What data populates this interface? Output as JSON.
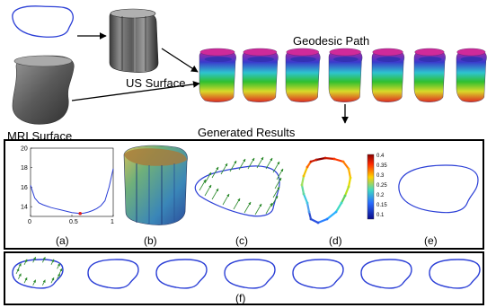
{
  "labels": {
    "us_surface": "US Surface",
    "mri_surface": "MRI Surface",
    "geodesic_path": "Geodesic Path",
    "generated_results": "Generated Results"
  },
  "panels": [
    "(a)",
    "(b)",
    "(c)",
    "(d)",
    "(e)",
    "(f)"
  ],
  "chart_data": {
    "type": "line",
    "x": [
      0,
      0.05,
      0.1,
      0.15,
      0.2,
      0.25,
      0.3,
      0.35,
      0.4,
      0.45,
      0.5,
      0.55,
      0.6,
      0.65,
      0.7,
      0.75,
      0.8,
      0.85,
      0.9,
      0.95,
      1.0
    ],
    "y": [
      16.2,
      14.9,
      14.4,
      14.2,
      14.05,
      13.9,
      13.8,
      13.7,
      13.6,
      13.5,
      13.4,
      13.35,
      13.3,
      13.35,
      13.45,
      13.6,
      13.8,
      14.1,
      14.6,
      16.0,
      17.9
    ],
    "marker": {
      "x": 0.6,
      "y": 13.3
    },
    "xlim": [
      0,
      1
    ],
    "ylim": [
      13,
      20
    ],
    "xticks": [
      "0",
      "0.5",
      "1"
    ],
    "yticks": [
      "14",
      "16",
      "18",
      "20"
    ]
  },
  "colorbar": {
    "ticks": [
      "0.4",
      "0.35",
      "0.3",
      "0.25",
      "0.2",
      "0.15",
      "0.1"
    ]
  },
  "colors": {
    "contour": "#2b3fd6",
    "arrows": "#2e8b2e",
    "marker": "#e02020",
    "frame": "#000000"
  }
}
